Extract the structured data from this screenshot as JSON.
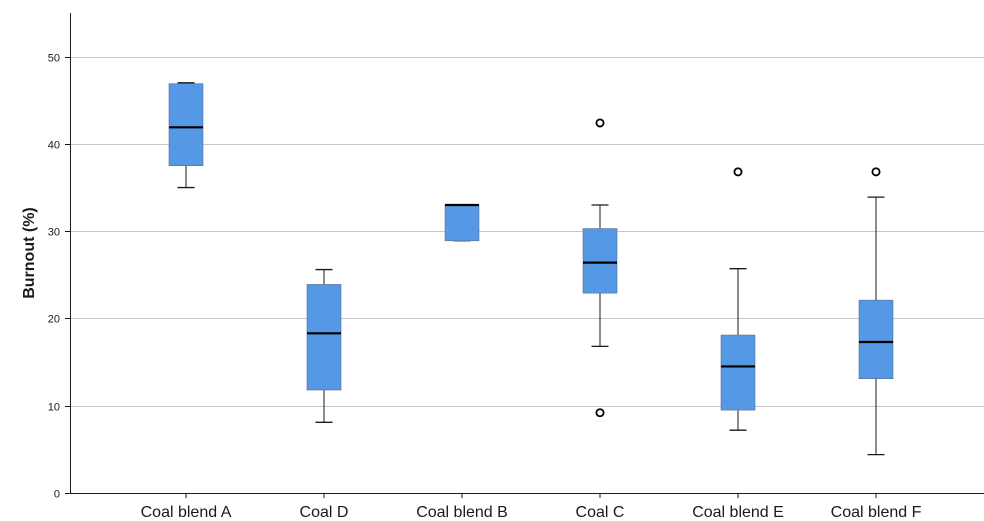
{
  "chart_data": {
    "type": "boxplot",
    "title": "",
    "xlabel": "",
    "ylabel": "Burnout (%)",
    "ylim": [
      0,
      55
    ],
    "yticks": [
      0,
      10,
      20,
      30,
      40,
      50
    ],
    "grid": "horizontal",
    "box_color": "#5598e5",
    "categories": [
      "Coal blend A",
      "Coal D",
      "Coal blend B",
      "Coal C",
      "Coal blend E",
      "Coal blend F"
    ],
    "boxes": [
      {
        "category": "Coal blend A",
        "whisker_low": 35.0,
        "q1": 37.5,
        "median": 41.9,
        "q3": 46.9,
        "whisker_high": 47.0,
        "outliers": []
      },
      {
        "category": "Coal D",
        "whisker_low": 8.1,
        "q1": 11.8,
        "median": 18.3,
        "q3": 23.9,
        "whisker_high": 25.6,
        "outliers": []
      },
      {
        "category": "Coal blend B",
        "whisker_low": 28.9,
        "q1": 28.9,
        "median": 33.0,
        "q3": 33.0,
        "whisker_high": 33.0,
        "outliers": []
      },
      {
        "category": "Coal C",
        "whisker_low": 16.8,
        "q1": 22.9,
        "median": 26.4,
        "q3": 30.3,
        "whisker_high": 33.0,
        "outliers": [
          42.4,
          9.2
        ]
      },
      {
        "category": "Coal blend E",
        "whisker_low": 7.2,
        "q1": 9.5,
        "median": 14.5,
        "q3": 18.1,
        "whisker_high": 25.7,
        "outliers": [
          36.8
        ]
      },
      {
        "category": "Coal blend F",
        "whisker_low": 4.4,
        "q1": 13.1,
        "median": 17.3,
        "q3": 22.1,
        "whisker_high": 33.9,
        "outliers": [
          36.8
        ]
      }
    ]
  }
}
